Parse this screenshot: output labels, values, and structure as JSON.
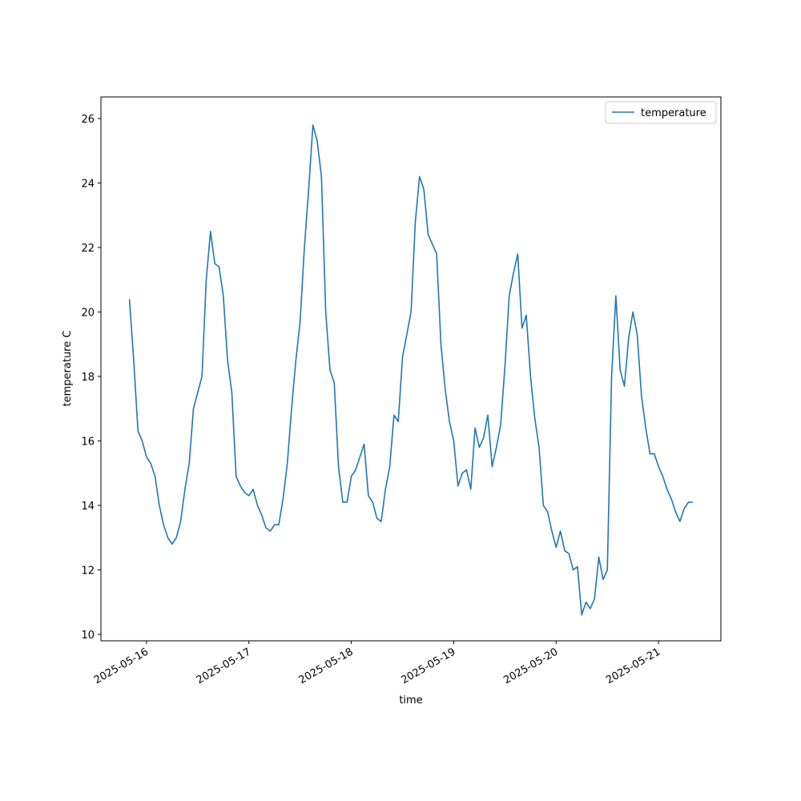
{
  "chart_data": {
    "type": "line",
    "x_label": "time",
    "y_label": "temperature C",
    "x": [
      "2025-05-15T20:00",
      "2025-05-15T21:00",
      "2025-05-15T22:00",
      "2025-05-15T23:00",
      "2025-05-16T00:00",
      "2025-05-16T01:00",
      "2025-05-16T02:00",
      "2025-05-16T03:00",
      "2025-05-16T04:00",
      "2025-05-16T05:00",
      "2025-05-16T06:00",
      "2025-05-16T07:00",
      "2025-05-16T08:00",
      "2025-05-16T09:00",
      "2025-05-16T10:00",
      "2025-05-16T11:00",
      "2025-05-16T12:00",
      "2025-05-16T13:00",
      "2025-05-16T14:00",
      "2025-05-16T15:00",
      "2025-05-16T16:00",
      "2025-05-16T17:00",
      "2025-05-16T18:00",
      "2025-05-16T19:00",
      "2025-05-16T20:00",
      "2025-05-16T21:00",
      "2025-05-16T22:00",
      "2025-05-16T23:00",
      "2025-05-17T00:00",
      "2025-05-17T01:00",
      "2025-05-17T02:00",
      "2025-05-17T03:00",
      "2025-05-17T04:00",
      "2025-05-17T05:00",
      "2025-05-17T06:00",
      "2025-05-17T07:00",
      "2025-05-17T08:00",
      "2025-05-17T09:00",
      "2025-05-17T10:00",
      "2025-05-17T11:00",
      "2025-05-17T12:00",
      "2025-05-17T13:00",
      "2025-05-17T14:00",
      "2025-05-17T15:00",
      "2025-05-17T16:00",
      "2025-05-17T17:00",
      "2025-05-17T18:00",
      "2025-05-17T19:00",
      "2025-05-17T20:00",
      "2025-05-17T21:00",
      "2025-05-17T22:00",
      "2025-05-17T23:00",
      "2025-05-18T00:00",
      "2025-05-18T01:00",
      "2025-05-18T02:00",
      "2025-05-18T03:00",
      "2025-05-18T04:00",
      "2025-05-18T05:00",
      "2025-05-18T06:00",
      "2025-05-18T07:00",
      "2025-05-18T08:00",
      "2025-05-18T09:00",
      "2025-05-18T10:00",
      "2025-05-18T11:00",
      "2025-05-18T12:00",
      "2025-05-18T13:00",
      "2025-05-18T14:00",
      "2025-05-18T15:00",
      "2025-05-18T16:00",
      "2025-05-18T17:00",
      "2025-05-18T18:00",
      "2025-05-18T19:00",
      "2025-05-18T20:00",
      "2025-05-18T21:00",
      "2025-05-18T22:00",
      "2025-05-18T23:00",
      "2025-05-19T00:00",
      "2025-05-19T01:00",
      "2025-05-19T02:00",
      "2025-05-19T03:00",
      "2025-05-19T04:00",
      "2025-05-19T05:00",
      "2025-05-19T06:00",
      "2025-05-19T07:00",
      "2025-05-19T08:00",
      "2025-05-19T09:00",
      "2025-05-19T10:00",
      "2025-05-19T11:00",
      "2025-05-19T12:00",
      "2025-05-19T13:00",
      "2025-05-19T14:00",
      "2025-05-19T15:00",
      "2025-05-19T16:00",
      "2025-05-19T17:00",
      "2025-05-19T18:00",
      "2025-05-19T19:00",
      "2025-05-19T20:00",
      "2025-05-19T21:00",
      "2025-05-19T22:00",
      "2025-05-19T23:00",
      "2025-05-20T00:00",
      "2025-05-20T01:00",
      "2025-05-20T02:00",
      "2025-05-20T03:00",
      "2025-05-20T04:00",
      "2025-05-20T05:00",
      "2025-05-20T06:00",
      "2025-05-20T07:00",
      "2025-05-20T08:00",
      "2025-05-20T09:00",
      "2025-05-20T10:00",
      "2025-05-20T11:00",
      "2025-05-20T12:00",
      "2025-05-20T13:00",
      "2025-05-20T14:00",
      "2025-05-20T15:00",
      "2025-05-20T16:00",
      "2025-05-20T17:00",
      "2025-05-20T18:00",
      "2025-05-20T19:00",
      "2025-05-20T20:00",
      "2025-05-20T21:00",
      "2025-05-20T22:00",
      "2025-05-20T23:00",
      "2025-05-21T00:00",
      "2025-05-21T01:00",
      "2025-05-21T02:00",
      "2025-05-21T03:00",
      "2025-05-21T04:00",
      "2025-05-21T05:00",
      "2025-05-21T06:00",
      "2025-05-21T07:00",
      "2025-05-21T08:00"
    ],
    "series": [
      {
        "name": "temperature",
        "color": "#1f77b4",
        "values": [
          20.4,
          18.5,
          16.3,
          16.0,
          15.5,
          15.3,
          14.9,
          14.0,
          13.4,
          13.0,
          12.8,
          13.0,
          13.5,
          14.5,
          15.3,
          17.0,
          17.5,
          18.0,
          21.0,
          22.5,
          21.5,
          21.4,
          20.5,
          18.5,
          17.5,
          14.9,
          14.6,
          14.4,
          14.3,
          14.5,
          14.0,
          13.7,
          13.3,
          13.2,
          13.4,
          13.4,
          14.2,
          15.3,
          17.0,
          18.5,
          19.7,
          22.0,
          23.8,
          25.8,
          25.3,
          24.2,
          20.0,
          18.2,
          17.8,
          15.2,
          14.1,
          14.1,
          14.9,
          15.1,
          15.5,
          15.9,
          14.3,
          14.1,
          13.6,
          13.5,
          14.5,
          15.2,
          16.8,
          16.6,
          18.6,
          19.3,
          20.0,
          22.8,
          24.2,
          23.8,
          22.4,
          22.1,
          21.8,
          19.0,
          17.6,
          16.6,
          16.0,
          14.6,
          15.0,
          15.1,
          14.5,
          16.4,
          15.8,
          16.1,
          16.8,
          15.2,
          15.8,
          16.5,
          18.3,
          20.5,
          21.2,
          21.8,
          19.5,
          19.9,
          18.0,
          16.7,
          15.8,
          14.0,
          13.8,
          13.2,
          12.7,
          13.2,
          12.6,
          12.5,
          12.0,
          12.1,
          10.6,
          11.0,
          10.8,
          11.1,
          12.4,
          11.7,
          12.0,
          18.0,
          20.5,
          18.2,
          17.7,
          19.2,
          20.0,
          19.3,
          17.4,
          16.4,
          15.6,
          15.6,
          15.2,
          14.9,
          14.5,
          14.2,
          13.8,
          13.5,
          13.9,
          14.1,
          14.1
        ]
      }
    ],
    "xlim": [
      "2025-05-15T13:19",
      "2025-05-21T14:37"
    ],
    "xticks": [
      "2025-05-16",
      "2025-05-17",
      "2025-05-18",
      "2025-05-19",
      "2025-05-20",
      "2025-05-21"
    ],
    "ylim": [
      9.8,
      26.67
    ],
    "yticks": [
      10,
      12,
      14,
      16,
      18,
      20,
      22,
      24,
      26
    ],
    "legend": "upper right"
  }
}
